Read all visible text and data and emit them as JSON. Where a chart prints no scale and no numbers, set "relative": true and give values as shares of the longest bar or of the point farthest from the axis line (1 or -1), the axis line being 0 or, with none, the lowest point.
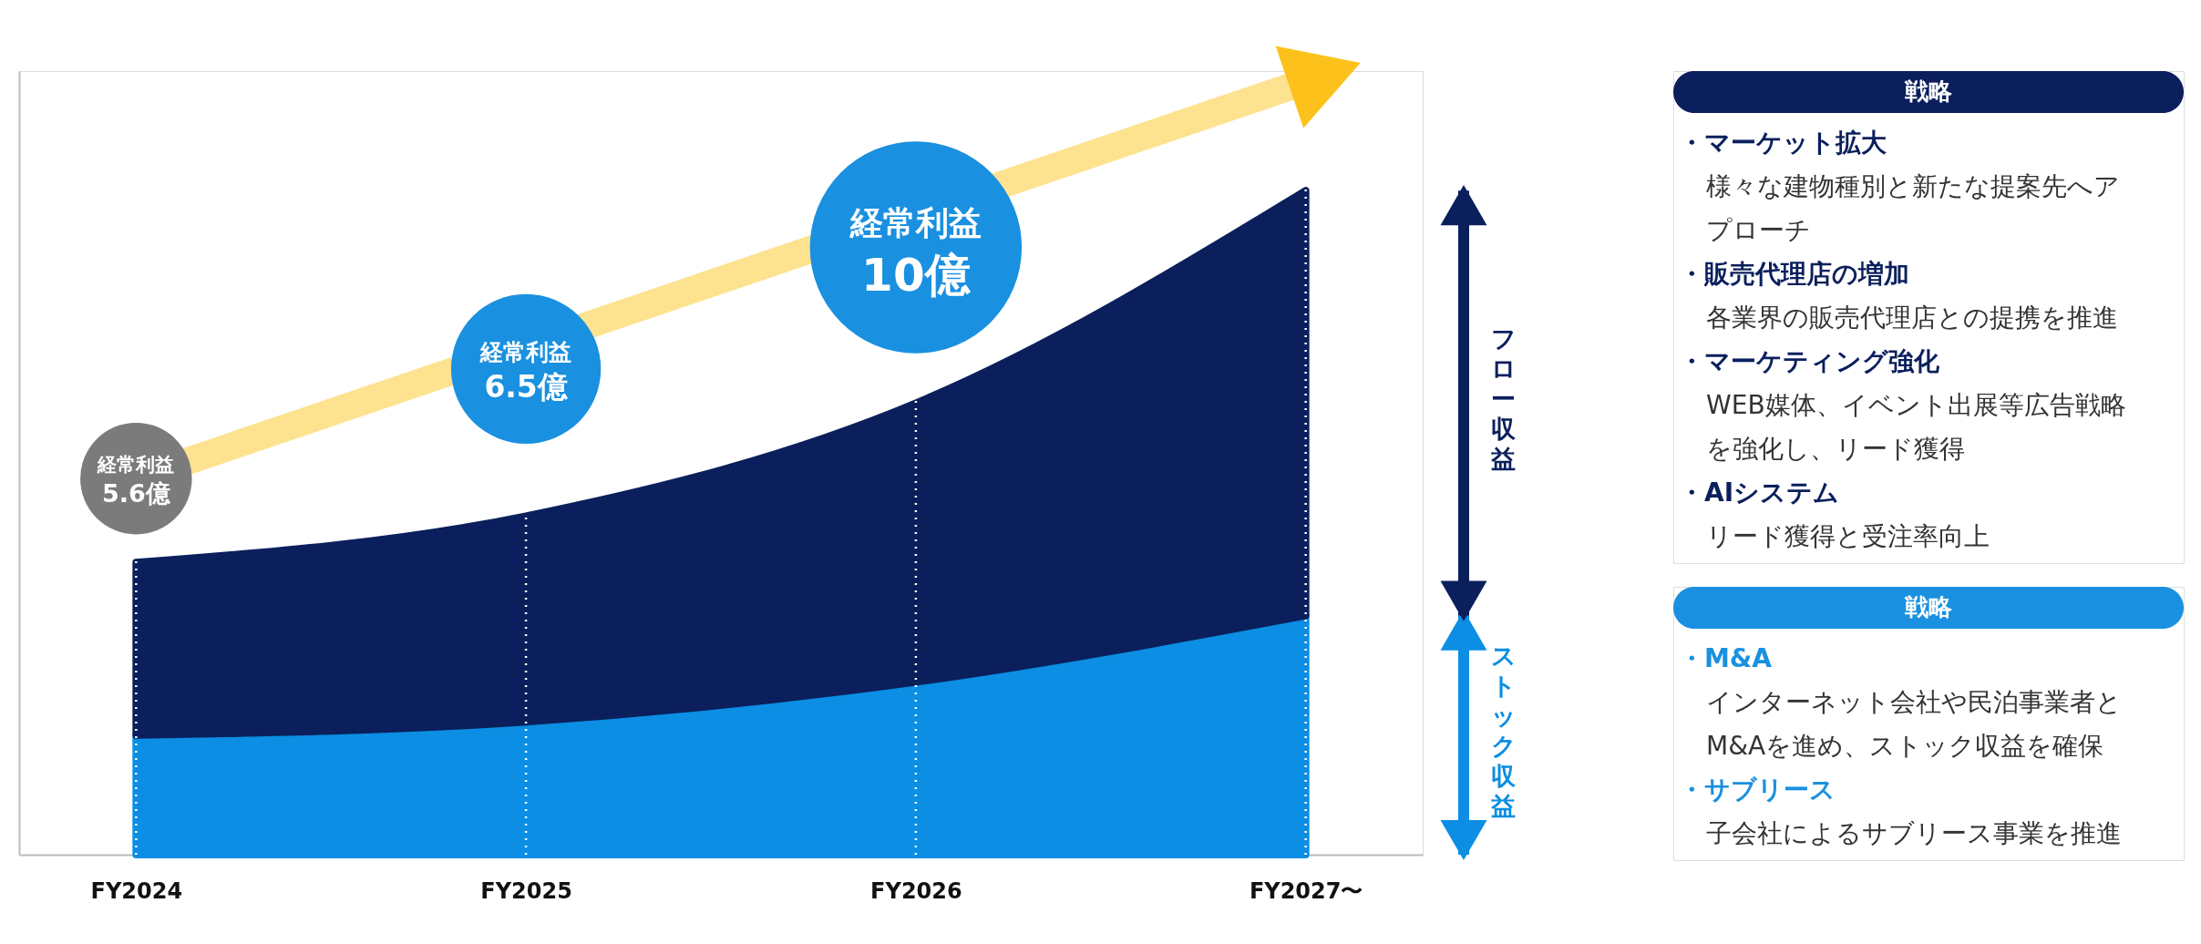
{
  "chart_data": [
    {
      "type": "area",
      "categories": [
        "FY2024",
        "FY2025",
        "FY2026",
        "FY2027〜"
      ],
      "stacked": true,
      "relative": true,
      "grid": "x",
      "legend": false,
      "series": [
        {
          "name": "ストック収益",
          "color": "#0b8ee3",
          "values": [
            0.18,
            0.2,
            0.26,
            0.36
          ]
        },
        {
          "name": "フロー収益",
          "color": "#0a1f5c",
          "values": [
            0.26,
            0.31,
            0.42,
            0.64
          ]
        }
      ],
      "annotations": [
        "経常利益\n5.6億",
        "経常利益\n6.5億",
        "経常利益\n10億"
      ]
    },
    {
      "type": "other",
      "title": "戦略",
      "annotations": [
        "・マーケット拡大",
        "様々な建物種別と新たな提案先へアプローチ",
        "・販売代理店の増加",
        "各業界の販売代理店との提携を推進",
        "・マーケティング強化",
        "WEB媒体、イベント出展等広告戦略を強化し、リード獲得",
        "・AIシステム",
        "リード獲得と受注率向上"
      ]
    },
    {
      "type": "other",
      "title": "戦略",
      "annotations": [
        "・M&A",
        "インターネット会社や民泊事業者とM&Aを進め、ストック収益を確保",
        "・サブリース",
        "子会社によるサブリース事業を推進"
      ]
    }
  ]
}
